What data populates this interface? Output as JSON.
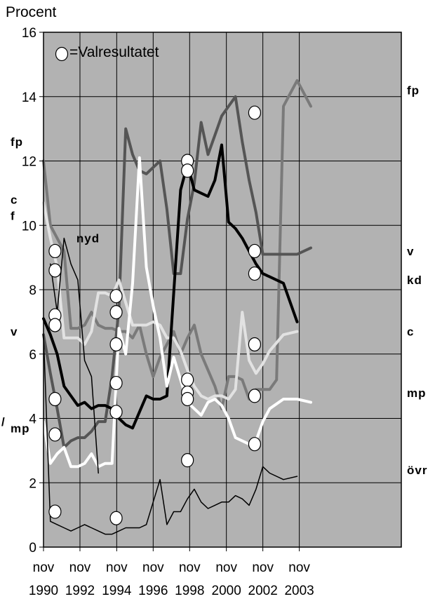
{
  "chart_data": {
    "type": "line",
    "ylabel": "Procent",
    "ylim": [
      0,
      16
    ],
    "yticks": [
      0,
      2,
      4,
      6,
      8,
      10,
      12,
      14,
      16
    ],
    "xlim": [
      1990.75,
      2003.8
    ],
    "xticks": [
      {
        "x": 1990.75,
        "line1": "nov",
        "line2": "1990"
      },
      {
        "x": 1992.08,
        "line1": "nov",
        "line2": "1992"
      },
      {
        "x": 1993.42,
        "line1": "nov",
        "line2": "1994"
      },
      {
        "x": 1994.75,
        "line1": "nov",
        "line2": "1996"
      },
      {
        "x": 1996.08,
        "line1": "nov",
        "line2": "1998"
      },
      {
        "x": 1997.42,
        "line1": "nov",
        "line2": "2000"
      },
      {
        "x": 1998.75,
        "line1": "nov",
        "line2": "2002"
      },
      {
        "x": 2000.08,
        "line1": "nov",
        "line2": "2003"
      }
    ],
    "grid": true,
    "background": "#b2b2b2",
    "legend": {
      "symbol": "circle",
      "text": "=Valresultatet",
      "placement": "top-left"
    },
    "series": [
      {
        "id": "fp",
        "color": "#7a7a7a",
        "width": 4,
        "points": [
          [
            1990.75,
            12.0
          ],
          [
            1991.0,
            10.0
          ],
          [
            1991.25,
            9.6
          ],
          [
            1991.5,
            9.2
          ],
          [
            1991.75,
            6.8
          ],
          [
            1992.0,
            6.8
          ],
          [
            1992.25,
            6.9
          ],
          [
            1992.5,
            7.3
          ],
          [
            1992.75,
            6.9
          ],
          [
            1993.0,
            6.8
          ],
          [
            1993.25,
            6.8
          ],
          [
            1993.5,
            6.7
          ],
          [
            1993.75,
            6.7
          ],
          [
            1994.0,
            6.5
          ],
          [
            1994.25,
            6.9
          ],
          [
            1994.5,
            6.0
          ],
          [
            1994.75,
            5.3
          ],
          [
            1995.0,
            5.9
          ],
          [
            1995.25,
            6.3
          ],
          [
            1995.5,
            6.7
          ],
          [
            1995.75,
            6.0
          ],
          [
            1996.0,
            6.5
          ],
          [
            1996.25,
            6.9
          ],
          [
            1996.5,
            6.0
          ],
          [
            1996.75,
            5.5
          ],
          [
            1997.0,
            5.0
          ],
          [
            1997.25,
            4.3
          ],
          [
            1997.5,
            5.3
          ],
          [
            1997.75,
            5.3
          ],
          [
            1998.0,
            5.2
          ],
          [
            1998.25,
            4.6
          ],
          [
            1998.5,
            4.9
          ],
          [
            1998.75,
            4.9
          ],
          [
            1999.0,
            4.9
          ],
          [
            1999.25,
            5.2
          ],
          [
            1999.5,
            13.7
          ],
          [
            1999.75,
            14.1
          ],
          [
            2000.0,
            14.5
          ],
          [
            2000.25,
            14.1
          ],
          [
            2000.5,
            13.7
          ]
        ]
      },
      {
        "id": "v",
        "color": "#555555",
        "width": 4,
        "points": [
          [
            1990.75,
            6.6
          ],
          [
            1991.0,
            5.4
          ],
          [
            1991.25,
            4.3
          ],
          [
            1991.5,
            3.1
          ],
          [
            1991.75,
            3.3
          ],
          [
            1992.0,
            3.4
          ],
          [
            1992.25,
            3.4
          ],
          [
            1992.5,
            3.6
          ],
          [
            1992.75,
            3.9
          ],
          [
            1993.0,
            3.9
          ],
          [
            1993.25,
            5.3
          ],
          [
            1993.5,
            7.4
          ],
          [
            1993.75,
            13.0
          ],
          [
            1994.0,
            12.2
          ],
          [
            1994.25,
            11.7
          ],
          [
            1994.5,
            11.6
          ],
          [
            1994.75,
            11.8
          ],
          [
            1995.0,
            12.0
          ],
          [
            1995.25,
            10.5
          ],
          [
            1995.5,
            8.5
          ],
          [
            1995.75,
            8.5
          ],
          [
            1996.0,
            10.2
          ],
          [
            1996.25,
            11.3
          ],
          [
            1996.5,
            13.2
          ],
          [
            1996.75,
            12.2
          ],
          [
            1997.0,
            12.8
          ],
          [
            1997.25,
            13.4
          ],
          [
            1997.5,
            13.7
          ],
          [
            1997.75,
            14.0
          ],
          [
            1998.0,
            12.6
          ],
          [
            1998.25,
            11.4
          ],
          [
            1998.5,
            10.4
          ],
          [
            1998.75,
            9.1
          ],
          [
            1999.0,
            9.1
          ],
          [
            1999.5,
            9.1
          ],
          [
            2000.0,
            9.1
          ],
          [
            2000.5,
            9.3
          ]
        ]
      },
      {
        "id": "c",
        "color": "#e2e2e2",
        "width": 4,
        "points": [
          [
            1990.75,
            10.7
          ],
          [
            1991.0,
            9.6
          ],
          [
            1991.25,
            8.7
          ],
          [
            1991.5,
            6.5
          ],
          [
            1991.75,
            6.5
          ],
          [
            1992.0,
            6.5
          ],
          [
            1992.25,
            6.3
          ],
          [
            1992.5,
            6.7
          ],
          [
            1992.75,
            7.9
          ],
          [
            1993.0,
            7.9
          ],
          [
            1993.25,
            7.8
          ],
          [
            1993.5,
            8.3
          ],
          [
            1993.75,
            7.6
          ],
          [
            1994.0,
            6.9
          ],
          [
            1994.25,
            6.9
          ],
          [
            1994.5,
            6.9
          ],
          [
            1994.75,
            7.0
          ],
          [
            1995.0,
            6.9
          ],
          [
            1995.25,
            6.5
          ],
          [
            1995.5,
            6.5
          ],
          [
            1995.75,
            6.1
          ],
          [
            1996.0,
            5.5
          ],
          [
            1996.25,
            5.0
          ],
          [
            1996.5,
            4.7
          ],
          [
            1996.75,
            4.6
          ],
          [
            1997.0,
            4.7
          ],
          [
            1997.25,
            4.7
          ],
          [
            1997.5,
            4.6
          ],
          [
            1997.75,
            4.9
          ],
          [
            1998.0,
            7.3
          ],
          [
            1998.25,
            5.8
          ],
          [
            1998.5,
            5.4
          ],
          [
            1998.75,
            5.7
          ],
          [
            1999.0,
            6.1
          ],
          [
            1999.5,
            6.6
          ],
          [
            2000.0,
            6.7
          ]
        ]
      },
      {
        "id": "kd",
        "color": "#000000",
        "width": 4,
        "points": [
          [
            1990.75,
            7.1
          ],
          [
            1991.0,
            6.6
          ],
          [
            1991.25,
            6.0
          ],
          [
            1991.5,
            5.0
          ],
          [
            1991.75,
            4.7
          ],
          [
            1992.0,
            4.4
          ],
          [
            1992.25,
            4.5
          ],
          [
            1992.5,
            4.3
          ],
          [
            1992.75,
            4.4
          ],
          [
            1993.0,
            4.4
          ],
          [
            1993.25,
            4.3
          ],
          [
            1993.5,
            4.0
          ],
          [
            1993.75,
            3.8
          ],
          [
            1994.0,
            3.7
          ],
          [
            1994.25,
            4.2
          ],
          [
            1994.5,
            4.7
          ],
          [
            1994.75,
            4.6
          ],
          [
            1995.0,
            4.6
          ],
          [
            1995.25,
            4.7
          ],
          [
            1995.5,
            7.9
          ],
          [
            1995.75,
            11.1
          ],
          [
            1996.0,
            11.9
          ],
          [
            1996.25,
            11.1
          ],
          [
            1996.5,
            11.0
          ],
          [
            1996.75,
            10.9
          ],
          [
            1997.0,
            11.4
          ],
          [
            1997.25,
            12.5
          ],
          [
            1997.5,
            10.1
          ],
          [
            1997.75,
            9.9
          ],
          [
            1998.0,
            9.6
          ],
          [
            1998.25,
            9.2
          ],
          [
            1998.5,
            8.8
          ],
          [
            1998.75,
            8.5
          ],
          [
            1999.0,
            8.4
          ],
          [
            1999.5,
            8.2
          ],
          [
            2000.0,
            7.0
          ]
        ]
      },
      {
        "id": "mp",
        "color": "#ffffff",
        "width": 4,
        "points": [
          [
            1990.75,
            3.9
          ],
          [
            1991.0,
            2.6
          ],
          [
            1991.25,
            2.9
          ],
          [
            1991.5,
            3.1
          ],
          [
            1991.75,
            2.5
          ],
          [
            1992.0,
            2.5
          ],
          [
            1992.25,
            2.6
          ],
          [
            1992.5,
            2.9
          ],
          [
            1992.75,
            2.5
          ],
          [
            1993.0,
            2.6
          ],
          [
            1993.25,
            2.6
          ],
          [
            1993.5,
            6.8
          ],
          [
            1993.75,
            6.0
          ],
          [
            1994.0,
            8.2
          ],
          [
            1994.25,
            12.1
          ],
          [
            1994.5,
            8.7
          ],
          [
            1994.75,
            7.5
          ],
          [
            1995.0,
            6.5
          ],
          [
            1995.25,
            5.0
          ],
          [
            1995.5,
            5.9
          ],
          [
            1995.75,
            5.2
          ],
          [
            1996.0,
            4.5
          ],
          [
            1996.25,
            4.3
          ],
          [
            1996.5,
            4.1
          ],
          [
            1996.75,
            4.5
          ],
          [
            1997.0,
            4.6
          ],
          [
            1997.25,
            4.4
          ],
          [
            1997.5,
            4.0
          ],
          [
            1997.75,
            3.4
          ],
          [
            1998.0,
            3.3
          ],
          [
            1998.25,
            3.2
          ],
          [
            1998.5,
            3.3
          ],
          [
            1998.75,
            3.9
          ],
          [
            1999.0,
            4.3
          ],
          [
            1999.5,
            4.6
          ],
          [
            2000.0,
            4.6
          ],
          [
            2000.5,
            4.5
          ]
        ]
      },
      {
        "id": "nyd",
        "color": "#000000",
        "width": 1.5,
        "points": [
          [
            1991.0,
            8.8
          ],
          [
            1991.25,
            7.3
          ],
          [
            1991.5,
            9.6
          ],
          [
            1991.75,
            8.8
          ],
          [
            1992.0,
            8.3
          ],
          [
            1992.25,
            5.8
          ],
          [
            1992.5,
            5.3
          ],
          [
            1992.75,
            2.3
          ]
        ]
      },
      {
        "id": "övr",
        "color": "#000000",
        "width": 1.5,
        "points": [
          [
            1990.75,
            6.6
          ],
          [
            1991.0,
            0.8
          ],
          [
            1991.25,
            0.7
          ],
          [
            1991.5,
            0.6
          ],
          [
            1991.75,
            0.5
          ],
          [
            1992.0,
            0.6
          ],
          [
            1992.25,
            0.7
          ],
          [
            1992.5,
            0.6
          ],
          [
            1992.75,
            0.5
          ],
          [
            1993.0,
            0.4
          ],
          [
            1993.25,
            0.4
          ],
          [
            1993.5,
            0.5
          ],
          [
            1993.75,
            0.6
          ],
          [
            1994.0,
            0.6
          ],
          [
            1994.25,
            0.6
          ],
          [
            1994.5,
            0.7
          ],
          [
            1994.75,
            1.4
          ],
          [
            1995.0,
            2.1
          ],
          [
            1995.25,
            0.7
          ],
          [
            1995.5,
            1.1
          ],
          [
            1995.75,
            1.1
          ],
          [
            1996.0,
            1.5
          ],
          [
            1996.25,
            1.8
          ],
          [
            1996.5,
            1.4
          ],
          [
            1996.75,
            1.2
          ],
          [
            1997.0,
            1.3
          ],
          [
            1997.25,
            1.4
          ],
          [
            1997.5,
            1.4
          ],
          [
            1997.75,
            1.6
          ],
          [
            1998.0,
            1.5
          ],
          [
            1998.25,
            1.3
          ],
          [
            1998.5,
            1.8
          ],
          [
            1998.75,
            2.5
          ],
          [
            1999.0,
            2.3
          ],
          [
            1999.5,
            2.1
          ],
          [
            2000.0,
            2.2
          ]
        ]
      }
    ],
    "election_results": [
      [
        1991.17,
        9.2
      ],
      [
        1991.17,
        8.6
      ],
      [
        1991.17,
        7.2
      ],
      [
        1991.17,
        6.9
      ],
      [
        1991.17,
        4.6
      ],
      [
        1991.17,
        3.5
      ],
      [
        1991.17,
        1.1
      ],
      [
        1993.4,
        7.8
      ],
      [
        1993.4,
        7.3
      ],
      [
        1993.4,
        6.3
      ],
      [
        1993.4,
        5.1
      ],
      [
        1993.4,
        4.2
      ],
      [
        1993.4,
        0.9
      ],
      [
        1996.0,
        12.0
      ],
      [
        1996.0,
        11.7
      ],
      [
        1996.0,
        5.2
      ],
      [
        1996.0,
        4.8
      ],
      [
        1996.0,
        4.6
      ],
      [
        1996.0,
        2.7
      ],
      [
        1998.45,
        13.5
      ],
      [
        1998.45,
        9.2
      ],
      [
        1998.45,
        8.5
      ],
      [
        1998.45,
        6.3
      ],
      [
        1998.45,
        4.7
      ],
      [
        1998.45,
        3.2
      ]
    ],
    "series_labels": [
      {
        "text": "fp",
        "side": "right",
        "y": 14.2
      },
      {
        "text": "v",
        "side": "right",
        "y": 9.2
      },
      {
        "text": "kd",
        "side": "right",
        "y": 8.3
      },
      {
        "text": "c",
        "side": "right",
        "y": 6.7
      },
      {
        "text": "mp",
        "side": "right",
        "y": 4.8
      },
      {
        "text": "övr",
        "side": "right",
        "y": 2.4
      },
      {
        "text": "nyd",
        "side": "inside",
        "x": 1991.95,
        "y": 9.6
      },
      {
        "text": "fp",
        "side": "left",
        "y": 12.6
      },
      {
        "text": "c",
        "side": "left",
        "y": 10.8
      },
      {
        "text": "f",
        "side": "left",
        "y": 10.3
      },
      {
        "text": "v",
        "side": "left",
        "y": 6.7
      },
      {
        "text": "mp",
        "side": "left",
        "y": 3.7
      },
      {
        "text": "/",
        "side": "far-left",
        "y": 3.9
      }
    ]
  }
}
